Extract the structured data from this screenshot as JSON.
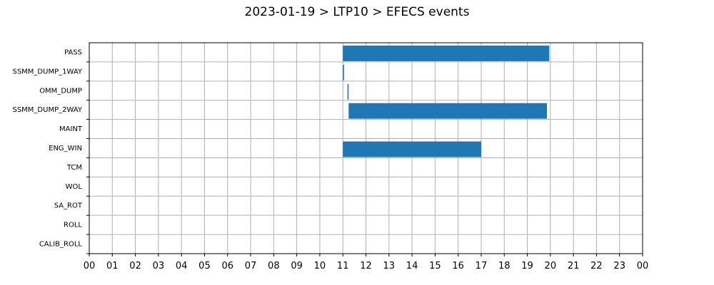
{
  "chart_data": {
    "type": "bar",
    "orientation": "horizontal",
    "title": "2023-01-19 > LTP10 > EFECS events",
    "xlabel": "",
    "ylabel": "",
    "categories": [
      "PASS",
      "SSMM_DUMP_1WAY",
      "OMM_DUMP",
      "SSMM_DUMP_2WAY",
      "MAINT",
      "ENG_WIN",
      "TCM",
      "WOL",
      "SA_ROT",
      "ROLL",
      "CALIB_ROLL"
    ],
    "x_tick_labels": [
      "00",
      "01",
      "02",
      "03",
      "04",
      "05",
      "06",
      "07",
      "08",
      "09",
      "10",
      "11",
      "12",
      "13",
      "14",
      "15",
      "16",
      "17",
      "18",
      "19",
      "20",
      "21",
      "22",
      "23",
      "00"
    ],
    "xlim": [
      0,
      24
    ],
    "grid": true,
    "color": "#1f77b4",
    "intervals": [
      {
        "category": "PASS",
        "start": 11.0,
        "end": 19.95
      },
      {
        "category": "SSMM_DUMP_1WAY",
        "start": 11.0,
        "end": 11.05
      },
      {
        "category": "OMM_DUMP",
        "start": 11.2,
        "end": 11.25
      },
      {
        "category": "SSMM_DUMP_2WAY",
        "start": 11.25,
        "end": 19.85
      },
      {
        "category": "ENG_WIN",
        "start": 11.0,
        "end": 17.0
      }
    ]
  }
}
